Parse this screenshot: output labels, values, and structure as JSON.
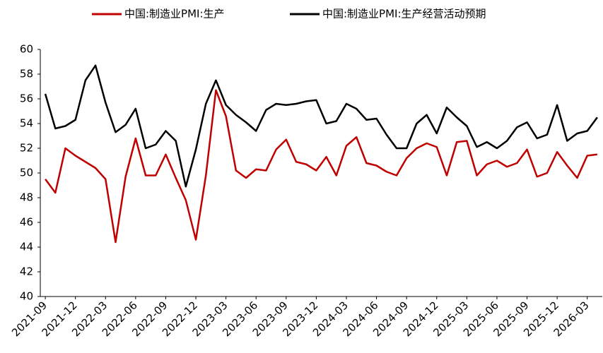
{
  "chart_data": {
    "type": "line",
    "categories": [
      "2021-09",
      null,
      null,
      "2021-12",
      null,
      null,
      "2022-03",
      null,
      null,
      "2022-06",
      null,
      null,
      "2022-09",
      null,
      null,
      "2022-12",
      null,
      null,
      "2023-03",
      null,
      null,
      "2023-06",
      null,
      null,
      "2023-09",
      null,
      null,
      "2023-12",
      null,
      null,
      "2024-03",
      null,
      null,
      "2024-06",
      null,
      null,
      "2024-09",
      null,
      null,
      "2024-12",
      null,
      null,
      "2025-03",
      null,
      null,
      "2025-06",
      null,
      null,
      "2025-09",
      null,
      null,
      "2025-12",
      null,
      null,
      "2026-03",
      null
    ],
    "series": [
      {
        "name": "中国:制造业PMI:生产",
        "color": "#c00000",
        "values": [
          49.5,
          48.4,
          52.0,
          51.4,
          50.9,
          50.4,
          49.5,
          44.4,
          49.7,
          52.8,
          49.8,
          49.8,
          51.5,
          49.6,
          47.8,
          44.6,
          49.8,
          56.7,
          54.6,
          50.2,
          49.6,
          50.3,
          50.2,
          51.9,
          52.7,
          50.9,
          50.7,
          50.2,
          51.3,
          49.8,
          52.2,
          52.9,
          50.8,
          50.6,
          50.1,
          49.8,
          51.2,
          52.0,
          52.4,
          52.1,
          49.8,
          52.5,
          52.6,
          49.8,
          50.7,
          51.0,
          50.5,
          50.8,
          51.9,
          49.7,
          50.0,
          51.7,
          50.6,
          49.6,
          51.4,
          51.5
        ]
      },
      {
        "name": "中国:制造业PMI:生产经营活动预期",
        "color": "#000000",
        "values": [
          56.4,
          53.6,
          53.8,
          54.3,
          57.5,
          58.7,
          55.7,
          53.3,
          53.9,
          55.2,
          52.0,
          52.3,
          53.4,
          52.6,
          48.9,
          51.9,
          55.6,
          57.5,
          55.5,
          54.7,
          54.1,
          53.4,
          55.1,
          55.6,
          55.5,
          55.6,
          55.8,
          55.9,
          54.0,
          54.2,
          55.6,
          55.2,
          54.3,
          54.4,
          53.1,
          52.0,
          52.0,
          54.0,
          54.7,
          53.2,
          55.3,
          54.5,
          53.8,
          52.1,
          52.5,
          52.0,
          52.6,
          53.7,
          54.1,
          52.8,
          53.1,
          55.5,
          52.6,
          53.2,
          53.4,
          54.5
        ]
      }
    ],
    "ylim": [
      40,
      60
    ],
    "yticks": [
      40,
      42,
      44,
      46,
      48,
      50,
      52,
      54,
      56,
      58,
      60
    ],
    "legend": "top"
  }
}
